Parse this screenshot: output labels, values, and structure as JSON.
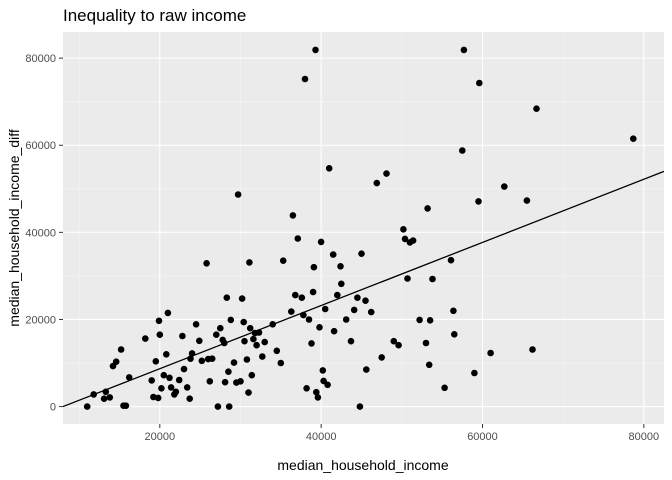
{
  "chart_data": {
    "type": "scatter",
    "title": "Inequality to raw income",
    "xlabel": "median_household_income",
    "ylabel": "median_household_income_diff",
    "xlim": [
      8000,
      82500
    ],
    "ylim": [
      -4000,
      86000
    ],
    "x_ticks": [
      20000,
      40000,
      60000,
      80000
    ],
    "x_tick_labels": [
      "20000",
      "40000",
      "60000",
      "80000"
    ],
    "y_ticks": [
      0,
      20000,
      40000,
      60000,
      80000
    ],
    "y_tick_labels": [
      "0",
      "20000",
      "40000",
      "60000",
      "80000"
    ],
    "grid": true,
    "legend": "none",
    "colors": {
      "panel": "#ebebeb",
      "grid_major": "#ffffff",
      "point": "#000000",
      "line": "#000000"
    },
    "trend_line": {
      "x": [
        8000,
        82500
      ],
      "y": [
        0,
        54000
      ]
    },
    "points": [
      [
        11000,
        0
      ],
      [
        11800,
        2800
      ],
      [
        13100,
        1800
      ],
      [
        13300,
        3400
      ],
      [
        13800,
        2100
      ],
      [
        14200,
        9300
      ],
      [
        14600,
        10300
      ],
      [
        15200,
        13100
      ],
      [
        15500,
        200
      ],
      [
        15800,
        200
      ],
      [
        16200,
        6700
      ],
      [
        18200,
        15600
      ],
      [
        19000,
        6000
      ],
      [
        19200,
        2200
      ],
      [
        19500,
        10400
      ],
      [
        19800,
        2000
      ],
      [
        19900,
        19700
      ],
      [
        20000,
        16500
      ],
      [
        20200,
        4200
      ],
      [
        20500,
        7200
      ],
      [
        20800,
        12000
      ],
      [
        21000,
        21500
      ],
      [
        21200,
        6600
      ],
      [
        21400,
        4400
      ],
      [
        21800,
        2800
      ],
      [
        22000,
        3400
      ],
      [
        22400,
        6100
      ],
      [
        22800,
        16200
      ],
      [
        23000,
        8600
      ],
      [
        23400,
        4400
      ],
      [
        23700,
        1800
      ],
      [
        23800,
        11000
      ],
      [
        24000,
        12200
      ],
      [
        24500,
        18900
      ],
      [
        24900,
        15100
      ],
      [
        25200,
        10500
      ],
      [
        25800,
        32900
      ],
      [
        26000,
        10900
      ],
      [
        26200,
        5800
      ],
      [
        26500,
        11000
      ],
      [
        27000,
        16500
      ],
      [
        27200,
        0
      ],
      [
        27500,
        18000
      ],
      [
        27800,
        15300
      ],
      [
        28000,
        14600
      ],
      [
        28100,
        5600
      ],
      [
        28300,
        25000
      ],
      [
        28500,
        8000
      ],
      [
        28600,
        0
      ],
      [
        28800,
        19900
      ],
      [
        29200,
        10100
      ],
      [
        29500,
        5500
      ],
      [
        29700,
        48700
      ],
      [
        30000,
        5800
      ],
      [
        30200,
        24800
      ],
      [
        30400,
        19400
      ],
      [
        30500,
        15000
      ],
      [
        30800,
        10800
      ],
      [
        31000,
        3200
      ],
      [
        31100,
        33100
      ],
      [
        31200,
        18000
      ],
      [
        31400,
        7200
      ],
      [
        31600,
        15500
      ],
      [
        31800,
        16900
      ],
      [
        32000,
        14100
      ],
      [
        32300,
        17000
      ],
      [
        32700,
        11500
      ],
      [
        33000,
        14800
      ],
      [
        34000,
        18900
      ],
      [
        34500,
        12800
      ],
      [
        35000,
        10000
      ],
      [
        35300,
        33500
      ],
      [
        36300,
        21800
      ],
      [
        36500,
        43900
      ],
      [
        36800,
        25600
      ],
      [
        37100,
        38600
      ],
      [
        37600,
        25000
      ],
      [
        37800,
        21000
      ],
      [
        38000,
        75200
      ],
      [
        38200,
        4200
      ],
      [
        38500,
        20000
      ],
      [
        38800,
        14500
      ],
      [
        39000,
        26300
      ],
      [
        39100,
        32000
      ],
      [
        39300,
        81900
      ],
      [
        39400,
        3300
      ],
      [
        39600,
        2100
      ],
      [
        39800,
        18200
      ],
      [
        40000,
        37800
      ],
      [
        40200,
        8300
      ],
      [
        40300,
        5900
      ],
      [
        40500,
        22400
      ],
      [
        40800,
        5000
      ],
      [
        41000,
        54700
      ],
      [
        41500,
        34900
      ],
      [
        41600,
        17300
      ],
      [
        42000,
        25600
      ],
      [
        42400,
        32200
      ],
      [
        42500,
        28200
      ],
      [
        43100,
        20000
      ],
      [
        43700,
        15000
      ],
      [
        44100,
        22200
      ],
      [
        44500,
        25000
      ],
      [
        44800,
        0
      ],
      [
        45000,
        35100
      ],
      [
        45500,
        24300
      ],
      [
        45600,
        8500
      ],
      [
        46200,
        21700
      ],
      [
        46900,
        51300
      ],
      [
        47500,
        11300
      ],
      [
        48100,
        53500
      ],
      [
        49000,
        15000
      ],
      [
        49600,
        14100
      ],
      [
        50200,
        40700
      ],
      [
        50400,
        38500
      ],
      [
        50700,
        29400
      ],
      [
        51000,
        37700
      ],
      [
        51400,
        38100
      ],
      [
        52200,
        19900
      ],
      [
        53000,
        14600
      ],
      [
        53200,
        45500
      ],
      [
        53400,
        9600
      ],
      [
        53500,
        19800
      ],
      [
        53800,
        29300
      ],
      [
        55300,
        4300
      ],
      [
        56100,
        33600
      ],
      [
        56400,
        22000
      ],
      [
        56500,
        16600
      ],
      [
        57500,
        58800
      ],
      [
        57700,
        81900
      ],
      [
        59000,
        7700
      ],
      [
        59500,
        47100
      ],
      [
        59600,
        74300
      ],
      [
        61000,
        12300
      ],
      [
        62700,
        50500
      ],
      [
        65500,
        47300
      ],
      [
        66200,
        13100
      ],
      [
        66700,
        68400
      ],
      [
        78700,
        61500
      ]
    ]
  }
}
